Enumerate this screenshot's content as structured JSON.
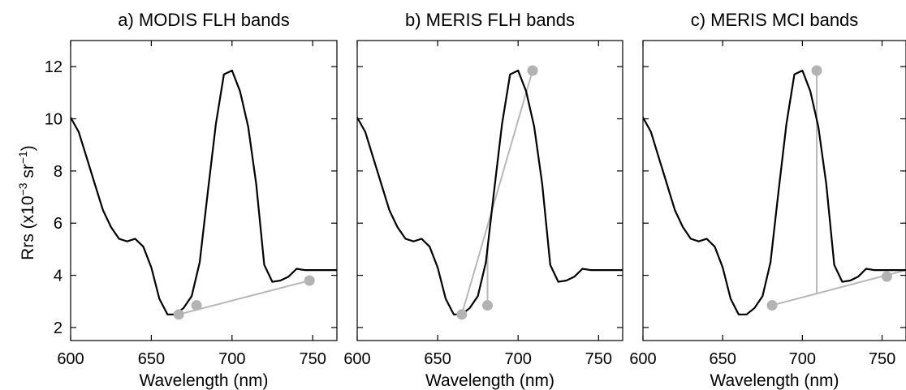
{
  "chart_data": {
    "type": "line",
    "ylabel": "Rrs (x10^-3 sr^-1)",
    "ylabel_parts": {
      "main": "Rrs (x10",
      "exp1": "−3",
      "mid": " sr",
      "exp2": "−1",
      "end": ")"
    },
    "xlabel": "Wavelength (nm)",
    "xlim": [
      600,
      765
    ],
    "ylim": [
      1.5,
      13
    ],
    "xticks": [
      600,
      650,
      700,
      750
    ],
    "yticks": [
      2,
      4,
      6,
      8,
      10,
      12
    ],
    "grid": false,
    "colors": {
      "spectrum": "#000000",
      "baseline": "#b8b8b8",
      "marker": "#b3b3b3"
    },
    "spectrum": {
      "x": [
        600,
        605,
        610,
        615,
        620,
        625,
        630,
        635,
        640,
        645,
        650,
        655,
        660,
        665,
        670,
        675,
        680,
        685,
        690,
        695,
        700,
        705,
        710,
        715,
        720,
        725,
        730,
        735,
        740,
        745,
        750,
        755,
        760,
        765
      ],
      "y": [
        10.05,
        9.5,
        8.5,
        7.5,
        6.5,
        5.85,
        5.4,
        5.3,
        5.4,
        5.1,
        4.3,
        3.1,
        2.5,
        2.5,
        2.75,
        3.2,
        4.5,
        7.2,
        9.8,
        11.7,
        11.85,
        11.05,
        9.7,
        7.5,
        4.4,
        3.75,
        3.8,
        3.95,
        4.25,
        4.2,
        4.2,
        4.2,
        4.2,
        4.2
      ]
    },
    "panels": [
      {
        "title": "a) MODIS FLH bands",
        "markers": [
          {
            "x": 667,
            "y": 2.5
          },
          {
            "x": 678,
            "y": 2.85
          },
          {
            "x": 748,
            "y": 3.8
          }
        ],
        "baseline": [
          {
            "x": 667,
            "y": 2.5
          },
          {
            "x": 748,
            "y": 3.8
          }
        ],
        "vertical": null
      },
      {
        "title": "b) MERIS FLH bands",
        "markers": [
          {
            "x": 665,
            "y": 2.5
          },
          {
            "x": 681,
            "y": 2.85
          },
          {
            "x": 709,
            "y": 11.85
          }
        ],
        "baseline": [
          {
            "x": 665,
            "y": 2.5
          },
          {
            "x": 709,
            "y": 11.85
          }
        ],
        "vertical": {
          "x": 681,
          "y0": 2.85,
          "y1": 5.1
        }
      },
      {
        "title": "c) MERIS MCI bands",
        "markers": [
          {
            "x": 681,
            "y": 2.85
          },
          {
            "x": 709,
            "y": 11.85
          },
          {
            "x": 753,
            "y": 3.95
          }
        ],
        "baseline": [
          {
            "x": 681,
            "y": 2.85
          },
          {
            "x": 765,
            "y": 4.2
          }
        ],
        "vertical": {
          "x": 709,
          "y0": 3.3,
          "y1": 11.85
        }
      }
    ]
  }
}
